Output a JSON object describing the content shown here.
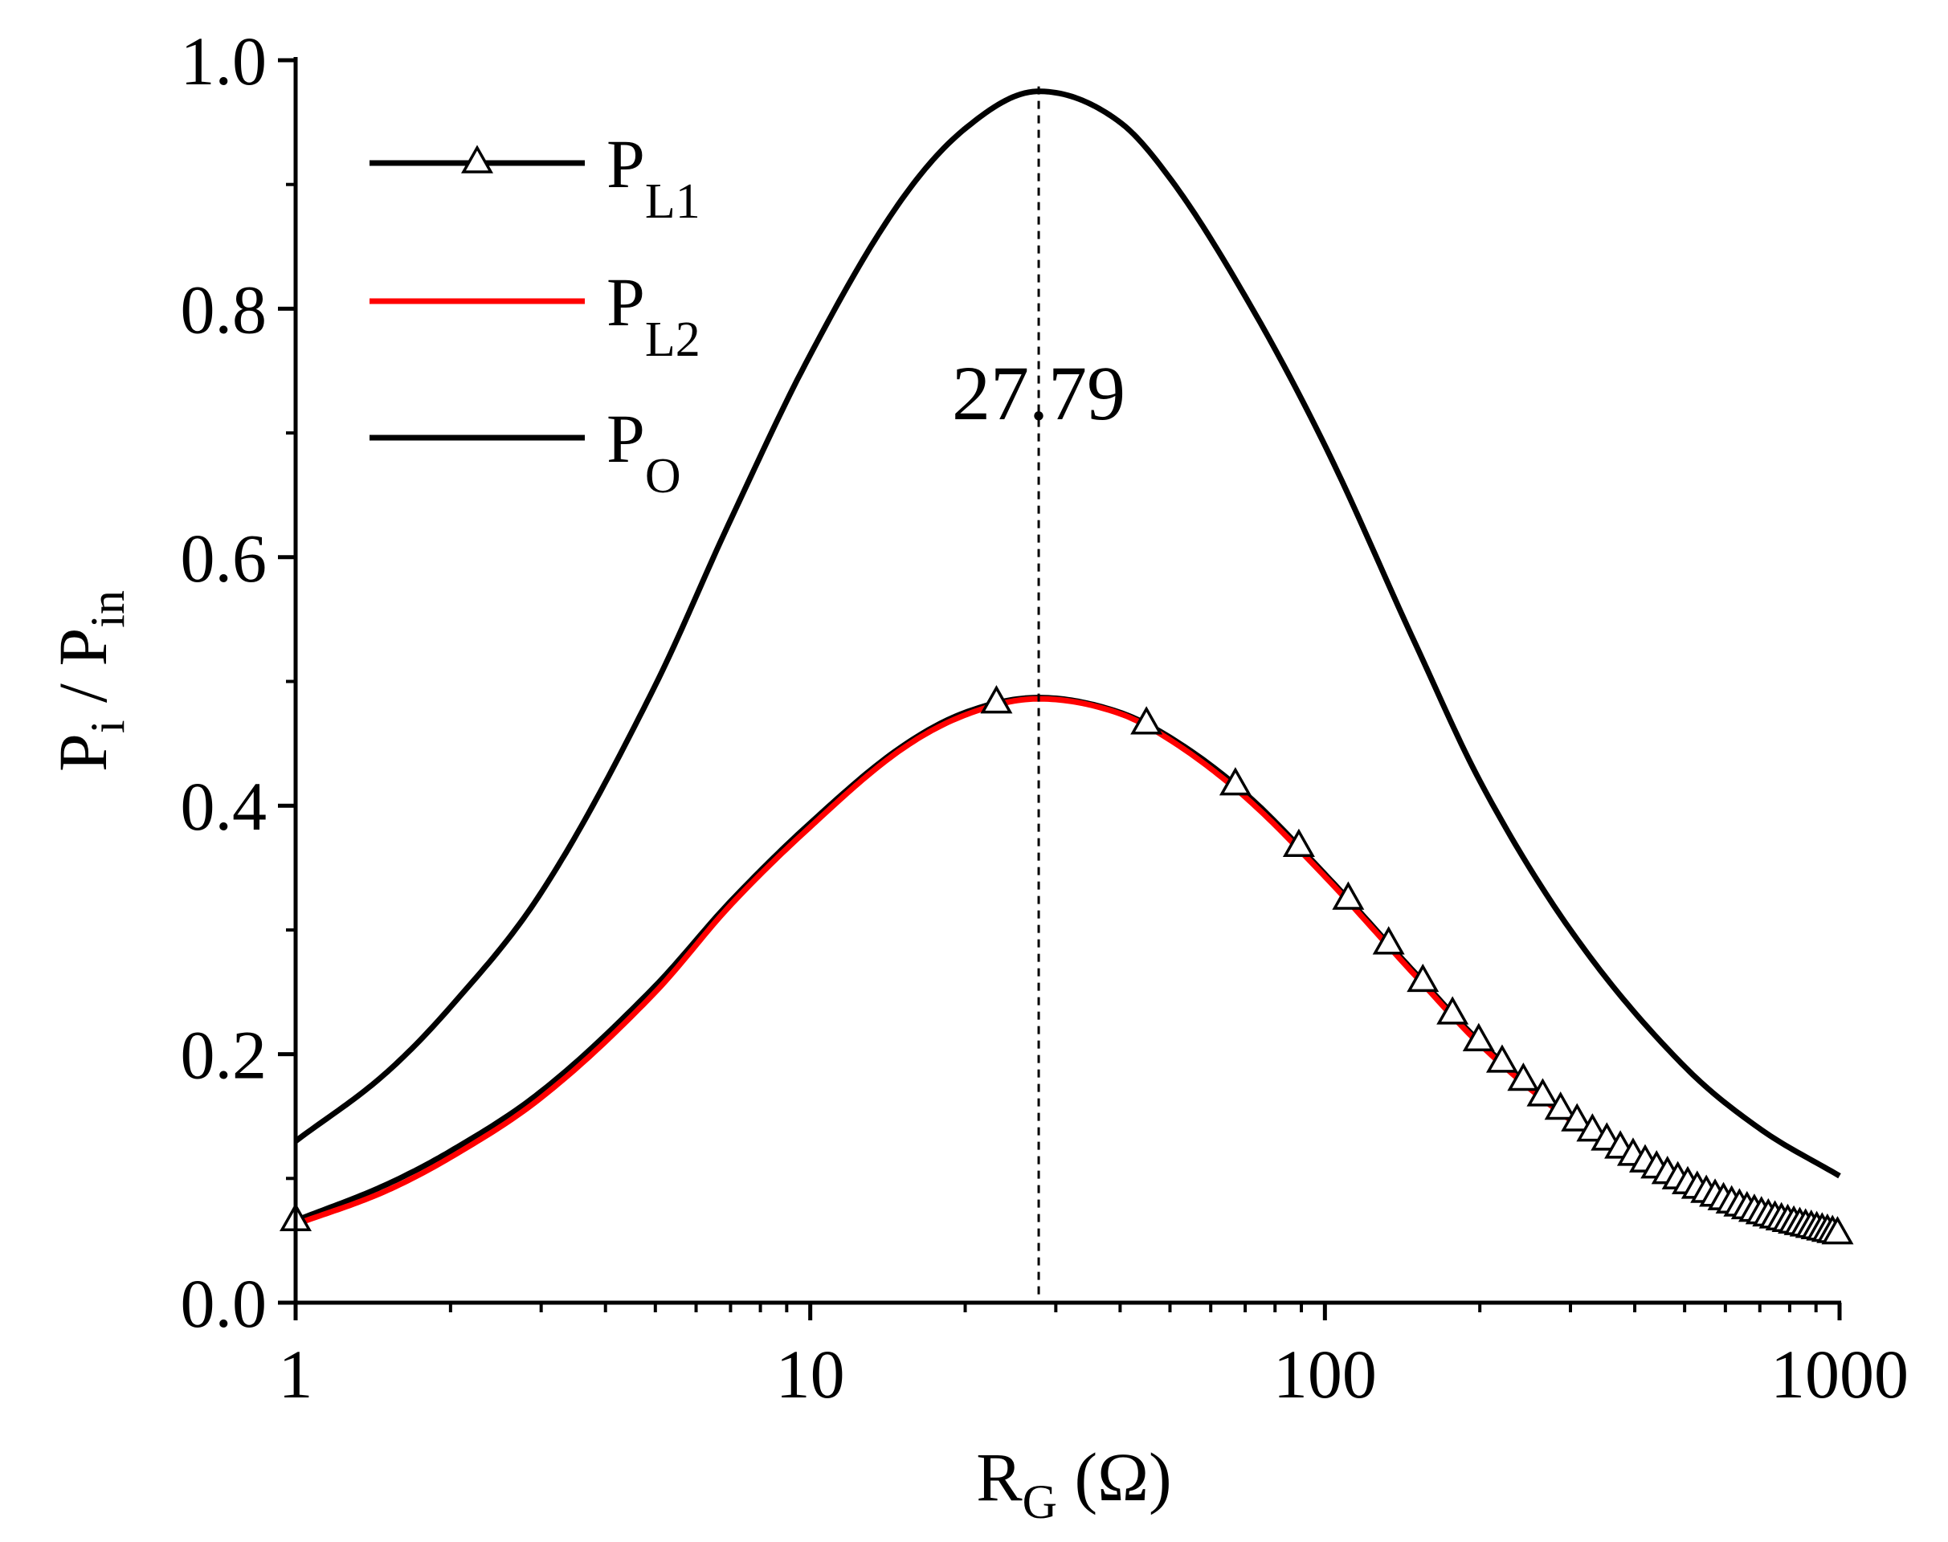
{
  "chart_data": {
    "type": "line",
    "x_scale": "log",
    "xlim": [
      1,
      1000
    ],
    "ylim": [
      0.0,
      1.0
    ],
    "xticks": [
      "1",
      "10",
      "100",
      "1000"
    ],
    "yticks": [
      "0.0",
      "0.2",
      "0.4",
      "0.6",
      "0.8",
      "1.0"
    ],
    "xlabel": {
      "main": "R",
      "sub": "G",
      "unit": " (Ω)"
    },
    "ylabel": {
      "p1": "P",
      "s1": "i",
      "mid": " / P",
      "s2": "in"
    },
    "x": [
      1,
      1.5,
      2,
      3,
      5,
      7,
      10,
      15,
      20,
      27.79,
      40,
      50,
      70,
      100,
      150,
      200,
      300,
      500,
      700,
      1000
    ],
    "series": [
      {
        "name": "P_L1",
        "label": "P",
        "sub": "L1",
        "color": "#000000",
        "marker": "triangle",
        "values": [
          0.066,
          0.095,
          0.122,
          0.17,
          0.255,
          0.323,
          0.386,
          0.447,
          0.475,
          0.487,
          0.475,
          0.455,
          0.41,
          0.345,
          0.265,
          0.21,
          0.15,
          0.097,
          0.072,
          0.055
        ]
      },
      {
        "name": "P_L2",
        "label": "P",
        "sub": "L2",
        "color": "#ff0000",
        "marker": "none",
        "values": [
          0.063,
          0.09,
          0.117,
          0.165,
          0.25,
          0.32,
          0.383,
          0.445,
          0.473,
          0.486,
          0.474,
          0.453,
          0.407,
          0.343,
          0.263,
          0.208,
          0.147,
          0.092,
          0.068,
          0.05
        ]
      },
      {
        "name": "P_O",
        "label": "P",
        "sub": "O",
        "color": "#000000",
        "marker": "none",
        "values": [
          0.13,
          0.185,
          0.238,
          0.33,
          0.497,
          0.63,
          0.763,
          0.887,
          0.945,
          0.975,
          0.95,
          0.905,
          0.81,
          0.69,
          0.53,
          0.42,
          0.3,
          0.19,
          0.14,
          0.102
        ]
      }
    ],
    "marker_x": [
      1,
      23,
      45,
      67,
      89,
      111,
      133,
      155,
      177,
      199,
      221,
      243,
      265,
      287,
      309,
      331,
      353,
      375,
      397,
      419,
      441,
      463,
      485,
      507,
      529,
      551,
      573,
      595,
      617,
      639,
      661,
      683,
      705,
      727,
      749,
      771,
      793,
      815,
      837,
      859,
      881,
      903,
      925,
      947,
      969,
      991
    ],
    "vline_x": 27.79,
    "annotation": "27.79"
  }
}
